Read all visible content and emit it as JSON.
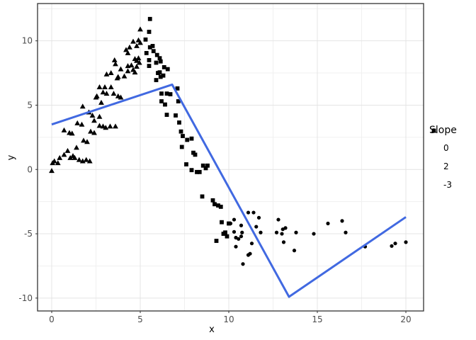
{
  "chart_data": {
    "type": "scatter",
    "title": "",
    "xlabel": "x",
    "ylabel": "y",
    "xlim": [
      -0.8,
      21.0
    ],
    "ylim": [
      -11.0,
      12.9
    ],
    "x_ticks": [
      0,
      5,
      10,
      15,
      20
    ],
    "y_ticks": [
      -10,
      -5,
      0,
      5,
      10
    ],
    "x_minor_ticks": [
      2.5,
      7.5,
      12.5,
      17.5
    ],
    "y_minor_ticks": [
      -7.5,
      -2.5,
      2.5,
      7.5,
      12.5
    ],
    "grid": true,
    "theme": {
      "panel_background": "#ffffff",
      "panel_border": "#333333",
      "grid_major_color": "#e4e4e4",
      "grid_minor_color": "#f0f0f0",
      "point_color": "#000000",
      "tick_color": "#333333",
      "tick_label_color": "#4d4d4d"
    },
    "legend": {
      "title": "Slope",
      "position": "right"
    },
    "series": [
      {
        "name": "0",
        "shape": "circle",
        "color": "#000000",
        "points": [
          [
            10.1,
            -4.2
          ],
          [
            10.3,
            -3.9
          ],
          [
            10.3,
            -4.85
          ],
          [
            10.4,
            -5.3
          ],
          [
            10.4,
            -6.0
          ],
          [
            10.55,
            -5.4
          ],
          [
            10.7,
            -4.35
          ],
          [
            10.7,
            -5.2
          ],
          [
            10.75,
            -4.9
          ],
          [
            10.8,
            -7.35
          ],
          [
            11.1,
            -3.35
          ],
          [
            11.1,
            -6.65
          ],
          [
            11.2,
            -6.55
          ],
          [
            11.3,
            -5.75
          ],
          [
            11.4,
            -3.35
          ],
          [
            11.55,
            -4.45
          ],
          [
            11.7,
            -3.75
          ],
          [
            11.8,
            -4.9
          ],
          [
            12.7,
            -4.9
          ],
          [
            12.8,
            -3.9
          ],
          [
            13.0,
            -5.0
          ],
          [
            13.05,
            -4.65
          ],
          [
            13.1,
            -5.65
          ],
          [
            13.2,
            -4.55
          ],
          [
            13.7,
            -6.3
          ],
          [
            13.8,
            -4.9
          ],
          [
            14.8,
            -5.0
          ],
          [
            15.6,
            -4.2
          ],
          [
            16.4,
            -4.0
          ],
          [
            16.6,
            -4.9
          ],
          [
            17.7,
            -6.0
          ],
          [
            19.2,
            -5.95
          ],
          [
            19.4,
            -5.75
          ],
          [
            20.0,
            -5.65
          ]
        ]
      },
      {
        "name": "2",
        "shape": "triangle",
        "color": "#000000",
        "points": [
          [
            0,
            -0.1
          ],
          [
            0.05,
            0.5
          ],
          [
            0.15,
            0.65
          ],
          [
            0.35,
            0.5
          ],
          [
            0.45,
            0.9
          ],
          [
            0.7,
            1.15
          ],
          [
            0.7,
            3.05
          ],
          [
            0.9,
            1.45
          ],
          [
            1.0,
            2.85
          ],
          [
            1.05,
            0.9
          ],
          [
            1.15,
            2.8
          ],
          [
            1.2,
            1.05
          ],
          [
            1.3,
            0.9
          ],
          [
            1.4,
            1.7
          ],
          [
            1.45,
            3.6
          ],
          [
            1.55,
            0.75
          ],
          [
            1.7,
            3.5
          ],
          [
            1.75,
            0.65
          ],
          [
            1.75,
            4.9
          ],
          [
            1.8,
            2.25
          ],
          [
            1.95,
            0.75
          ],
          [
            2.0,
            2.15
          ],
          [
            2.1,
            4.45
          ],
          [
            2.15,
            0.65
          ],
          [
            2.2,
            2.95
          ],
          [
            2.3,
            4.2
          ],
          [
            2.4,
            2.85
          ],
          [
            2.4,
            3.8
          ],
          [
            2.5,
            5.6
          ],
          [
            2.55,
            5.7
          ],
          [
            2.7,
            3.4
          ],
          [
            2.7,
            4.1
          ],
          [
            2.7,
            6.4
          ],
          [
            2.8,
            5.2
          ],
          [
            2.9,
            3.35
          ],
          [
            2.9,
            6.0
          ],
          [
            3.0,
            6.4
          ],
          [
            3.05,
            3.25
          ],
          [
            3.1,
            5.9
          ],
          [
            3.1,
            7.4
          ],
          [
            3.3,
            3.35
          ],
          [
            3.35,
            6.4
          ],
          [
            3.35,
            7.5
          ],
          [
            3.5,
            5.9
          ],
          [
            3.55,
            8.5
          ],
          [
            3.6,
            3.35
          ],
          [
            3.6,
            8.2
          ],
          [
            3.7,
            7.1
          ],
          [
            3.75,
            5.7
          ],
          [
            3.75,
            7.2
          ],
          [
            3.9,
            5.6
          ],
          [
            3.9,
            7.8
          ],
          [
            4.1,
            7.25
          ],
          [
            4.2,
            9.3
          ],
          [
            4.3,
            7.65
          ],
          [
            4.3,
            8.05
          ],
          [
            4.3,
            9.05
          ],
          [
            4.4,
            9.5
          ],
          [
            4.5,
            8.1
          ],
          [
            4.6,
            7.75
          ],
          [
            4.6,
            9.95
          ],
          [
            4.7,
            7.55
          ],
          [
            4.7,
            8.6
          ],
          [
            4.8,
            8.0
          ],
          [
            4.8,
            8.45
          ],
          [
            4.8,
            9.6
          ],
          [
            4.9,
            8.65
          ],
          [
            4.9,
            10.05
          ],
          [
            4.95,
            8.3
          ],
          [
            5.0,
            9.85
          ],
          [
            5.0,
            10.9
          ]
        ]
      },
      {
        "name": "-3",
        "shape": "square",
        "color": "#000000",
        "points": [
          [
            5.3,
            10.1
          ],
          [
            5.35,
            9.05
          ],
          [
            5.5,
            8.05
          ],
          [
            5.5,
            8.5
          ],
          [
            5.5,
            10.7
          ],
          [
            5.55,
            11.7
          ],
          [
            5.55,
            9.5
          ],
          [
            5.7,
            9.6
          ],
          [
            5.75,
            9.2
          ],
          [
            5.9,
            6.95
          ],
          [
            5.9,
            8.3
          ],
          [
            5.95,
            8.9
          ],
          [
            6.0,
            7.5
          ],
          [
            6.1,
            7.55
          ],
          [
            6.1,
            8.65
          ],
          [
            6.15,
            7.2
          ],
          [
            6.15,
            8.4
          ],
          [
            6.2,
            5.3
          ],
          [
            6.2,
            5.9
          ],
          [
            6.3,
            7.3
          ],
          [
            6.35,
            7.95
          ],
          [
            6.4,
            5.05
          ],
          [
            6.5,
            4.25
          ],
          [
            6.5,
            5.9
          ],
          [
            6.55,
            7.8
          ],
          [
            6.7,
            5.85
          ],
          [
            7.0,
            4.2
          ],
          [
            7.1,
            6.3
          ],
          [
            7.15,
            5.3
          ],
          [
            7.2,
            3.65
          ],
          [
            7.3,
            2.95
          ],
          [
            7.35,
            1.75
          ],
          [
            7.4,
            2.6
          ],
          [
            7.6,
            0.4
          ],
          [
            7.65,
            2.3
          ],
          [
            7.9,
            -0.05
          ],
          [
            7.9,
            2.4
          ],
          [
            8.0,
            1.3
          ],
          [
            8.1,
            1.15
          ],
          [
            8.2,
            -0.2
          ],
          [
            8.35,
            -0.2
          ],
          [
            8.5,
            -2.1
          ],
          [
            8.55,
            0.3
          ],
          [
            8.7,
            0.1
          ],
          [
            8.8,
            0.3
          ],
          [
            9.1,
            -2.4
          ],
          [
            9.2,
            -2.7
          ],
          [
            9.3,
            -5.55
          ],
          [
            9.4,
            -2.8
          ],
          [
            9.55,
            -2.9
          ],
          [
            9.6,
            -4.1
          ],
          [
            9.7,
            -5.0
          ],
          [
            9.8,
            -4.9
          ],
          [
            9.9,
            -5.2
          ],
          [
            10.0,
            -4.2
          ]
        ]
      }
    ],
    "fit_line": {
      "color": "#4169E1",
      "width": 3,
      "points": [
        [
          0,
          3.5
        ],
        [
          6.8,
          6.6
        ],
        [
          13.4,
          -9.9
        ],
        [
          20.0,
          -3.7
        ]
      ]
    }
  }
}
